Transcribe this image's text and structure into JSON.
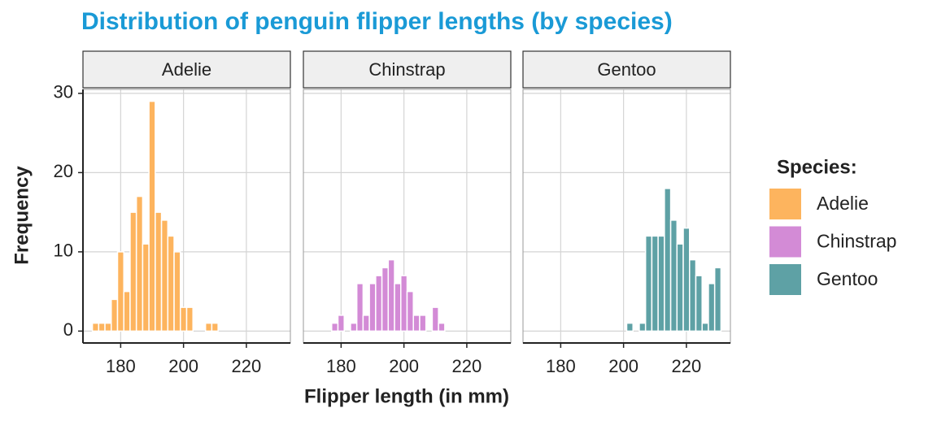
{
  "chart_data": {
    "type": "histogram",
    "title": "Distribution of penguin flipper lengths (by species)",
    "xlabel": "Flipper length (in mm)",
    "ylabel": "Frequency",
    "legend_title": "Species:",
    "legend": "right",
    "grid": true,
    "title_color": "#1a9ad6",
    "bins": [
      171,
      173,
      175,
      177,
      179,
      181,
      183,
      185,
      187,
      189,
      191,
      193,
      195,
      197,
      199,
      201,
      203,
      205,
      207,
      209,
      211,
      213,
      215,
      217,
      219,
      221,
      223,
      225,
      227,
      229,
      231
    ],
    "series": [
      {
        "name": "Adelie",
        "color": "#fdb45e",
        "values": [
          1,
          1,
          1,
          4,
          10,
          5,
          15,
          17,
          11,
          29,
          15,
          14,
          12,
          10,
          3,
          3,
          0,
          0,
          1,
          1,
          0,
          0,
          0,
          0,
          0,
          0,
          0,
          0,
          0,
          0
        ]
      },
      {
        "name": "Chinstrap",
        "color": "#d38bd6",
        "values": [
          0,
          0,
          0,
          1,
          2,
          0,
          1,
          6,
          2,
          6,
          7,
          8,
          9,
          6,
          7,
          5,
          2,
          2,
          0,
          3,
          1,
          0,
          0,
          0,
          0,
          0,
          0,
          0,
          0,
          0
        ]
      },
      {
        "name": "Gentoo",
        "color": "#5ea1a5",
        "values": [
          0,
          0,
          0,
          0,
          0,
          0,
          0,
          0,
          0,
          0,
          0,
          0,
          0,
          0,
          0,
          1,
          0,
          1,
          12,
          12,
          12,
          18,
          14,
          11,
          13,
          9,
          7,
          1,
          6,
          8
        ]
      }
    ],
    "xlim": [
      168,
      234
    ],
    "xticks": [
      180,
      200,
      220
    ],
    "ylim": [
      -1.5,
      30.5
    ],
    "yticks": [
      0,
      10,
      20,
      30
    ]
  }
}
